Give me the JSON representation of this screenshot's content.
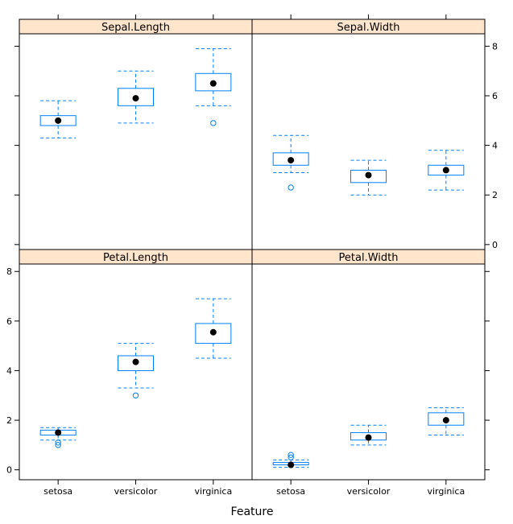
{
  "chart_data": {
    "type": "box",
    "layout": "2x2 trellis panels",
    "xlabel": "Feature",
    "ylabel": "",
    "categories": [
      "setosa",
      "versicolor",
      "virginica"
    ],
    "y_ticks": [
      "0",
      "2",
      "4",
      "6",
      "8"
    ],
    "colors": {
      "box": "#0080ff",
      "median": "#000000",
      "strip": "#ffe5cc"
    },
    "panels": [
      {
        "name": "Sepal.Length",
        "ylim": [
          -0.2,
          8.5
        ],
        "boxes": [
          {
            "category": "setosa",
            "min": 4.3,
            "q1": 4.8,
            "median": 5.0,
            "q3": 5.2,
            "max": 5.8,
            "outliers": []
          },
          {
            "category": "versicolor",
            "min": 4.9,
            "q1": 5.6,
            "median": 5.9,
            "q3": 6.3,
            "max": 7.0,
            "outliers": []
          },
          {
            "category": "virginica",
            "min": 5.6,
            "q1": 6.2,
            "median": 6.5,
            "q3": 6.9,
            "max": 7.9,
            "outliers": [
              4.9
            ]
          }
        ]
      },
      {
        "name": "Sepal.Width",
        "ylim": [
          -0.2,
          8.5
        ],
        "boxes": [
          {
            "category": "setosa",
            "min": 2.9,
            "q1": 3.2,
            "median": 3.4,
            "q3": 3.7,
            "max": 4.4,
            "outliers": [
              2.3
            ]
          },
          {
            "category": "versicolor",
            "min": 2.0,
            "q1": 2.5,
            "median": 2.8,
            "q3": 3.0,
            "max": 3.4,
            "outliers": []
          },
          {
            "category": "virginica",
            "min": 2.2,
            "q1": 2.8,
            "median": 3.0,
            "q3": 3.2,
            "max": 3.8,
            "outliers": []
          }
        ]
      },
      {
        "name": "Petal.Length",
        "ylim": [
          -0.4,
          8.3
        ],
        "boxes": [
          {
            "category": "setosa",
            "min": 1.2,
            "q1": 1.4,
            "median": 1.5,
            "q3": 1.6,
            "max": 1.7,
            "outliers": [
              1.0,
              1.1
            ]
          },
          {
            "category": "versicolor",
            "min": 3.3,
            "q1": 4.0,
            "median": 4.35,
            "q3": 4.6,
            "max": 5.1,
            "outliers": [
              3.0
            ]
          },
          {
            "category": "virginica",
            "min": 4.5,
            "q1": 5.1,
            "median": 5.55,
            "q3": 5.9,
            "max": 6.9,
            "outliers": []
          }
        ]
      },
      {
        "name": "Petal.Width",
        "ylim": [
          -0.4,
          8.3
        ],
        "boxes": [
          {
            "category": "setosa",
            "min": 0.1,
            "q1": 0.2,
            "median": 0.2,
            "q3": 0.3,
            "max": 0.4,
            "outliers": [
              0.5,
              0.6
            ]
          },
          {
            "category": "versicolor",
            "min": 1.0,
            "q1": 1.2,
            "median": 1.3,
            "q3": 1.5,
            "max": 1.8,
            "outliers": []
          },
          {
            "category": "virginica",
            "min": 1.4,
            "q1": 1.8,
            "median": 2.0,
            "q3": 2.3,
            "max": 2.5,
            "outliers": []
          }
        ]
      }
    ]
  }
}
